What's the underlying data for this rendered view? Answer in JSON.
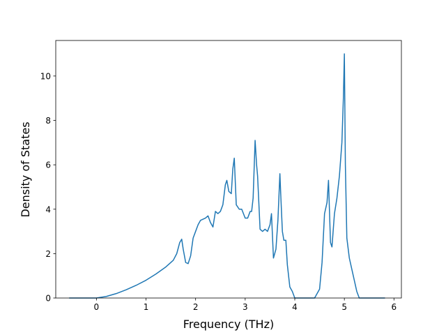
{
  "chart_data": {
    "type": "line",
    "title": "",
    "xlabel": "Frequency (THz)",
    "ylabel": "Density of States",
    "xlim": [
      -0.82,
      6.15
    ],
    "ylim": [
      0,
      11.6
    ],
    "xticks": [
      0,
      1,
      2,
      3,
      4,
      5,
      6
    ],
    "yticks": [
      0,
      2,
      4,
      6,
      8,
      10
    ],
    "grid": false,
    "legend": "none",
    "series": [
      {
        "color": "#1f77b4",
        "x": [
          -0.55,
          -0.2,
          0.0,
          0.2,
          0.4,
          0.6,
          0.8,
          1.0,
          1.2,
          1.4,
          1.55,
          1.62,
          1.68,
          1.72,
          1.75,
          1.8,
          1.85,
          1.9,
          1.95,
          2.0,
          2.05,
          2.1,
          2.15,
          2.2,
          2.25,
          2.3,
          2.35,
          2.4,
          2.45,
          2.5,
          2.55,
          2.6,
          2.63,
          2.67,
          2.72,
          2.75,
          2.78,
          2.82,
          2.88,
          2.93,
          3.0,
          3.05,
          3.1,
          3.13,
          3.16,
          3.2,
          3.23,
          3.25,
          3.3,
          3.35,
          3.4,
          3.45,
          3.5,
          3.53,
          3.57,
          3.62,
          3.66,
          3.7,
          3.72,
          3.75,
          3.78,
          3.82,
          3.85,
          3.9,
          3.95,
          4.0,
          4.05,
          4.4,
          4.45,
          4.5,
          4.55,
          4.6,
          4.65,
          4.68,
          4.72,
          4.75,
          4.8,
          4.85,
          4.9,
          4.95,
          4.98,
          5.0,
          5.02,
          5.05,
          5.1,
          5.15,
          5.2,
          5.25,
          5.3,
          5.5,
          5.82
        ],
        "y": [
          0.0,
          0.0,
          0.0,
          0.07,
          0.2,
          0.37,
          0.57,
          0.8,
          1.08,
          1.4,
          1.7,
          2.0,
          2.5,
          2.65,
          2.2,
          1.6,
          1.55,
          1.9,
          2.7,
          3.0,
          3.3,
          3.5,
          3.55,
          3.6,
          3.7,
          3.4,
          3.2,
          3.9,
          3.8,
          3.9,
          4.2,
          5.1,
          5.3,
          4.8,
          4.7,
          5.8,
          6.3,
          4.2,
          4.0,
          4.0,
          3.6,
          3.6,
          3.9,
          3.9,
          4.5,
          7.1,
          6.0,
          5.5,
          3.1,
          3.0,
          3.1,
          3.0,
          3.3,
          3.8,
          1.8,
          2.2,
          3.5,
          5.6,
          4.5,
          3.0,
          2.6,
          2.6,
          1.5,
          0.5,
          0.3,
          0.0,
          0.0,
          0.0,
          0.2,
          0.4,
          1.6,
          3.8,
          4.3,
          5.3,
          2.5,
          2.3,
          3.8,
          4.5,
          5.5,
          7.0,
          9.0,
          11.0,
          6.0,
          2.7,
          1.8,
          1.3,
          0.8,
          0.3,
          0.0,
          0.0,
          0.0
        ]
      }
    ]
  }
}
